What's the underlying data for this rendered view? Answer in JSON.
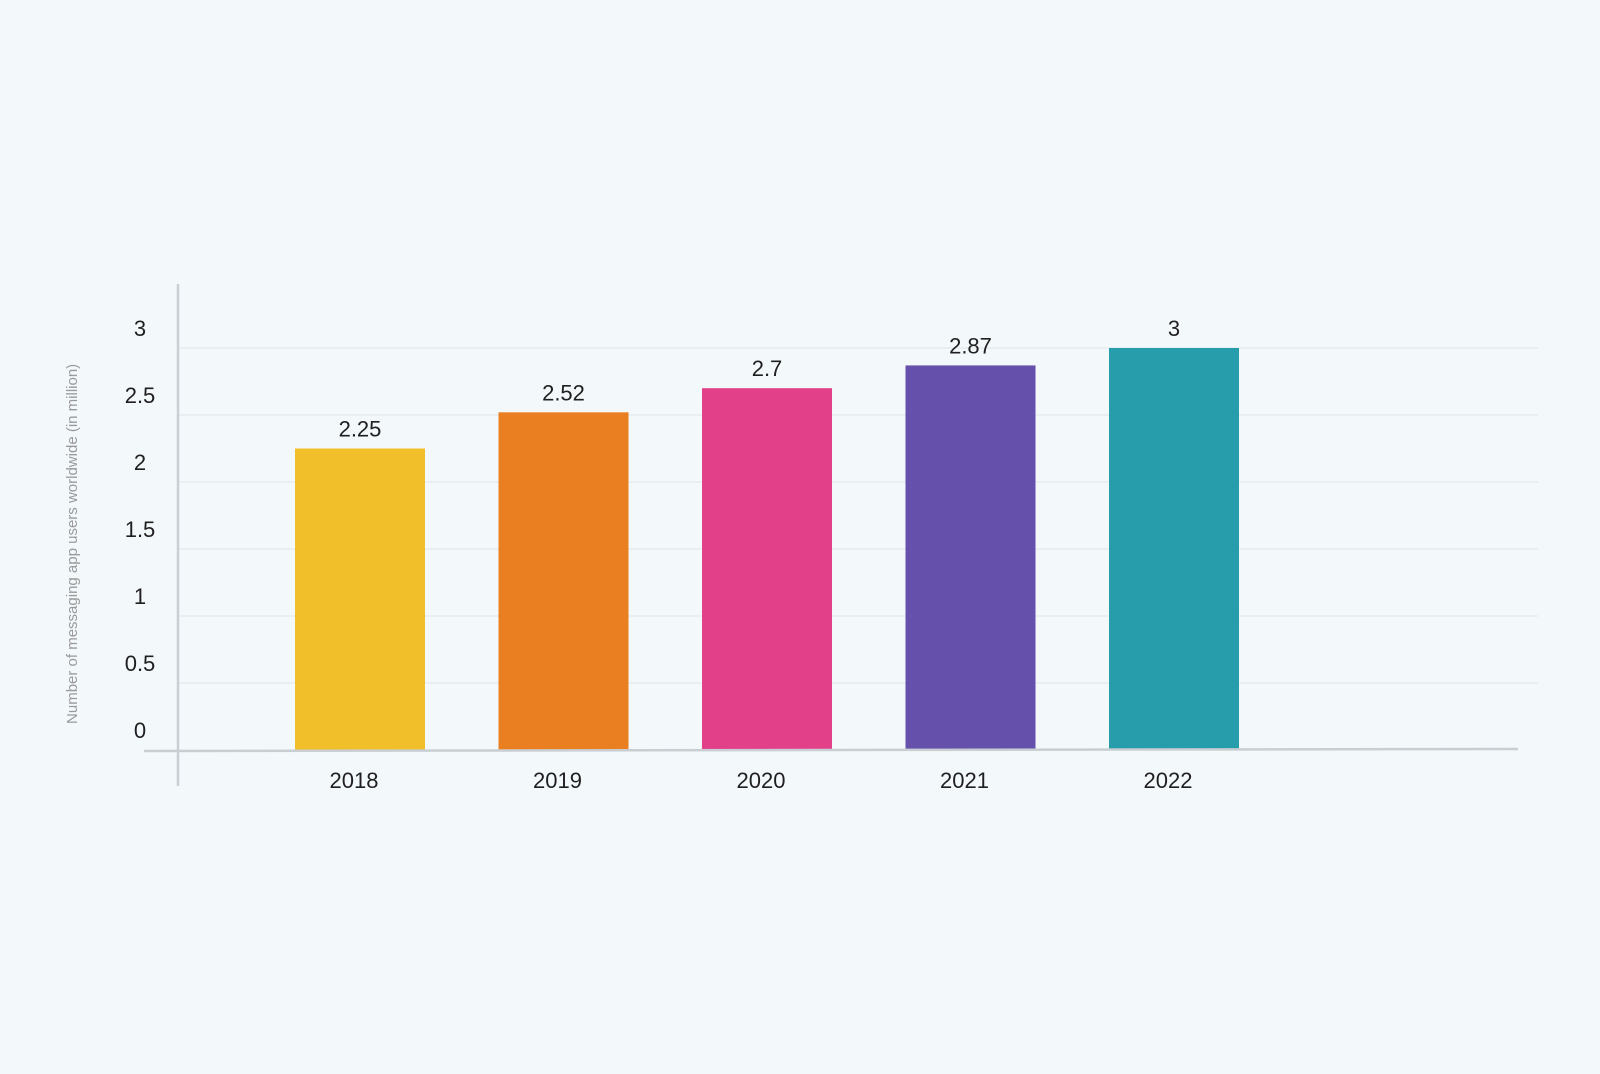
{
  "chart_data": {
    "type": "bar",
    "categories": [
      "2018",
      "2019",
      "2020",
      "2021",
      "2022"
    ],
    "values": [
      2.25,
      2.52,
      2.7,
      2.87,
      3
    ],
    "data_labels": [
      "2.25",
      "2.52",
      "2.7",
      "2.87",
      "3"
    ],
    "title": "",
    "xlabel": "",
    "ylabel": "Number of messaging app users worldwide (in million)",
    "ylim": [
      0,
      3.3
    ],
    "yticks": [
      0,
      0.5,
      1,
      1.5,
      2,
      2.5,
      3
    ],
    "ytick_labels": [
      "0",
      "0.5",
      "1",
      "1.5",
      "2",
      "2.5",
      "3"
    ],
    "grid": true,
    "legend": "none",
    "colors": [
      "#f0bf2a",
      "#ea7f22",
      "#e24089",
      "#6550ab",
      "#279cab"
    ],
    "axis_color": "#c9ced3",
    "grid_color": "#e6ebee",
    "background": "#f3f8fb"
  }
}
